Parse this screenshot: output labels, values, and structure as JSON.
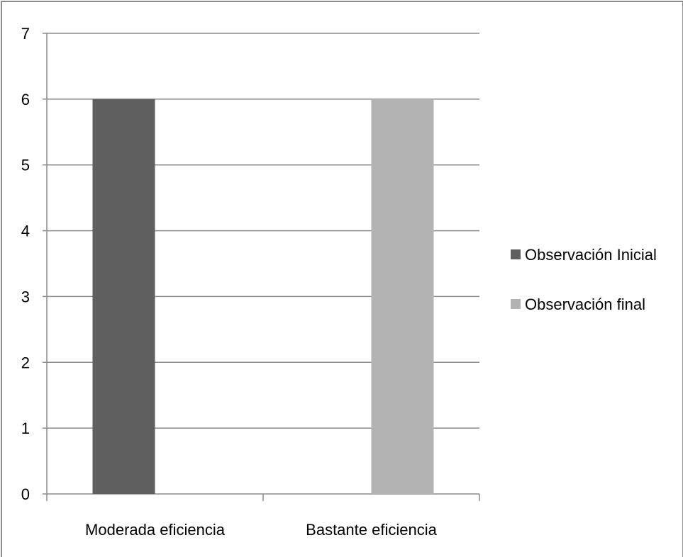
{
  "chart_data": {
    "type": "bar",
    "title": "",
    "xlabel": "",
    "ylabel": "",
    "categories": [
      "Moderada eficiencia",
      "Bastante eficiencia"
    ],
    "series": [
      {
        "name": "Observación Inicial",
        "color": "#5f5f5f",
        "values": [
          6,
          0
        ]
      },
      {
        "name": "Observación final",
        "color": "#b3b3b3",
        "values": [
          0,
          6
        ]
      }
    ],
    "ylim": [
      0,
      7
    ],
    "yticks": [
      "0",
      "1",
      "2",
      "3",
      "4",
      "5",
      "6",
      "7"
    ],
    "grid": true,
    "legend_position": "right"
  }
}
